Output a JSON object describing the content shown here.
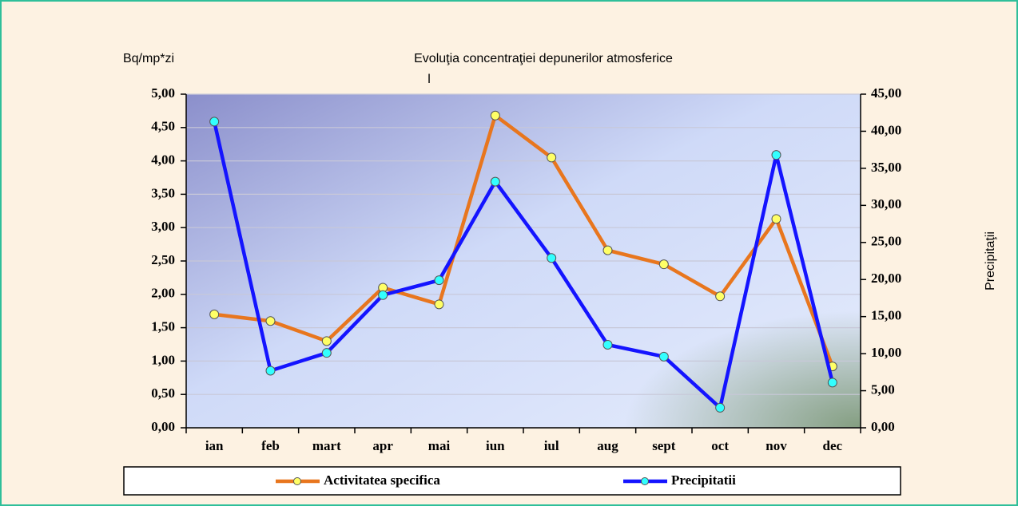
{
  "chart_data": {
    "type": "line",
    "title": "Evoluţia concentraţiei depunerilor atmosferice",
    "subtitle": "l",
    "y_label": "Bq/mp*zi",
    "y2_label": "Precipitaţii",
    "categories": [
      "ian",
      "feb",
      "mart",
      "apr",
      "mai",
      "iun",
      "iul",
      "aug",
      "sept",
      "oct",
      "nov",
      "dec"
    ],
    "series": [
      {
        "name": "Activitatea specifica",
        "color": "#e8761e",
        "marker_color": "#ffff66",
        "axis": "y",
        "values": [
          1.7,
          1.6,
          1.3,
          2.1,
          1.85,
          4.68,
          4.05,
          2.66,
          2.45,
          1.97,
          3.13,
          0.92
        ]
      },
      {
        "name": "Precipitatii",
        "color": "#1414ff",
        "marker_color": "#33ffff",
        "axis": "y2",
        "values": [
          41.3,
          7.7,
          10.1,
          17.9,
          19.9,
          33.2,
          22.9,
          11.2,
          9.6,
          2.7,
          36.8,
          6.1
        ]
      }
    ],
    "ylim": [
      0,
      5
    ],
    "yticks": [
      {
        "value": 0,
        "label": "0,00"
      },
      {
        "value": 0.5,
        "label": "0,50"
      },
      {
        "value": 1,
        "label": "1,00"
      },
      {
        "value": 1.5,
        "label": "1,50"
      },
      {
        "value": 2,
        "label": "2,00"
      },
      {
        "value": 2.5,
        "label": "2,50"
      },
      {
        "value": 3,
        "label": "3,00"
      },
      {
        "value": 3.5,
        "label": "3,50"
      },
      {
        "value": 4,
        "label": "4,00"
      },
      {
        "value": 4.5,
        "label": "4,50"
      },
      {
        "value": 5,
        "label": "5,00"
      }
    ],
    "y2lim": [
      0,
      45
    ],
    "y2ticks": [
      {
        "value": 0,
        "label": "0,00"
      },
      {
        "value": 5,
        "label": "5,00"
      },
      {
        "value": 10,
        "label": "10,00"
      },
      {
        "value": 15,
        "label": "15,00"
      },
      {
        "value": 20,
        "label": "20,00"
      },
      {
        "value": 25,
        "label": "25,00"
      },
      {
        "value": 30,
        "label": "30,00"
      },
      {
        "value": 35,
        "label": "35,00"
      },
      {
        "value": 40,
        "label": "40,00"
      },
      {
        "value": 45,
        "label": "45,00"
      }
    ],
    "grid": true,
    "legend": "bottom"
  }
}
